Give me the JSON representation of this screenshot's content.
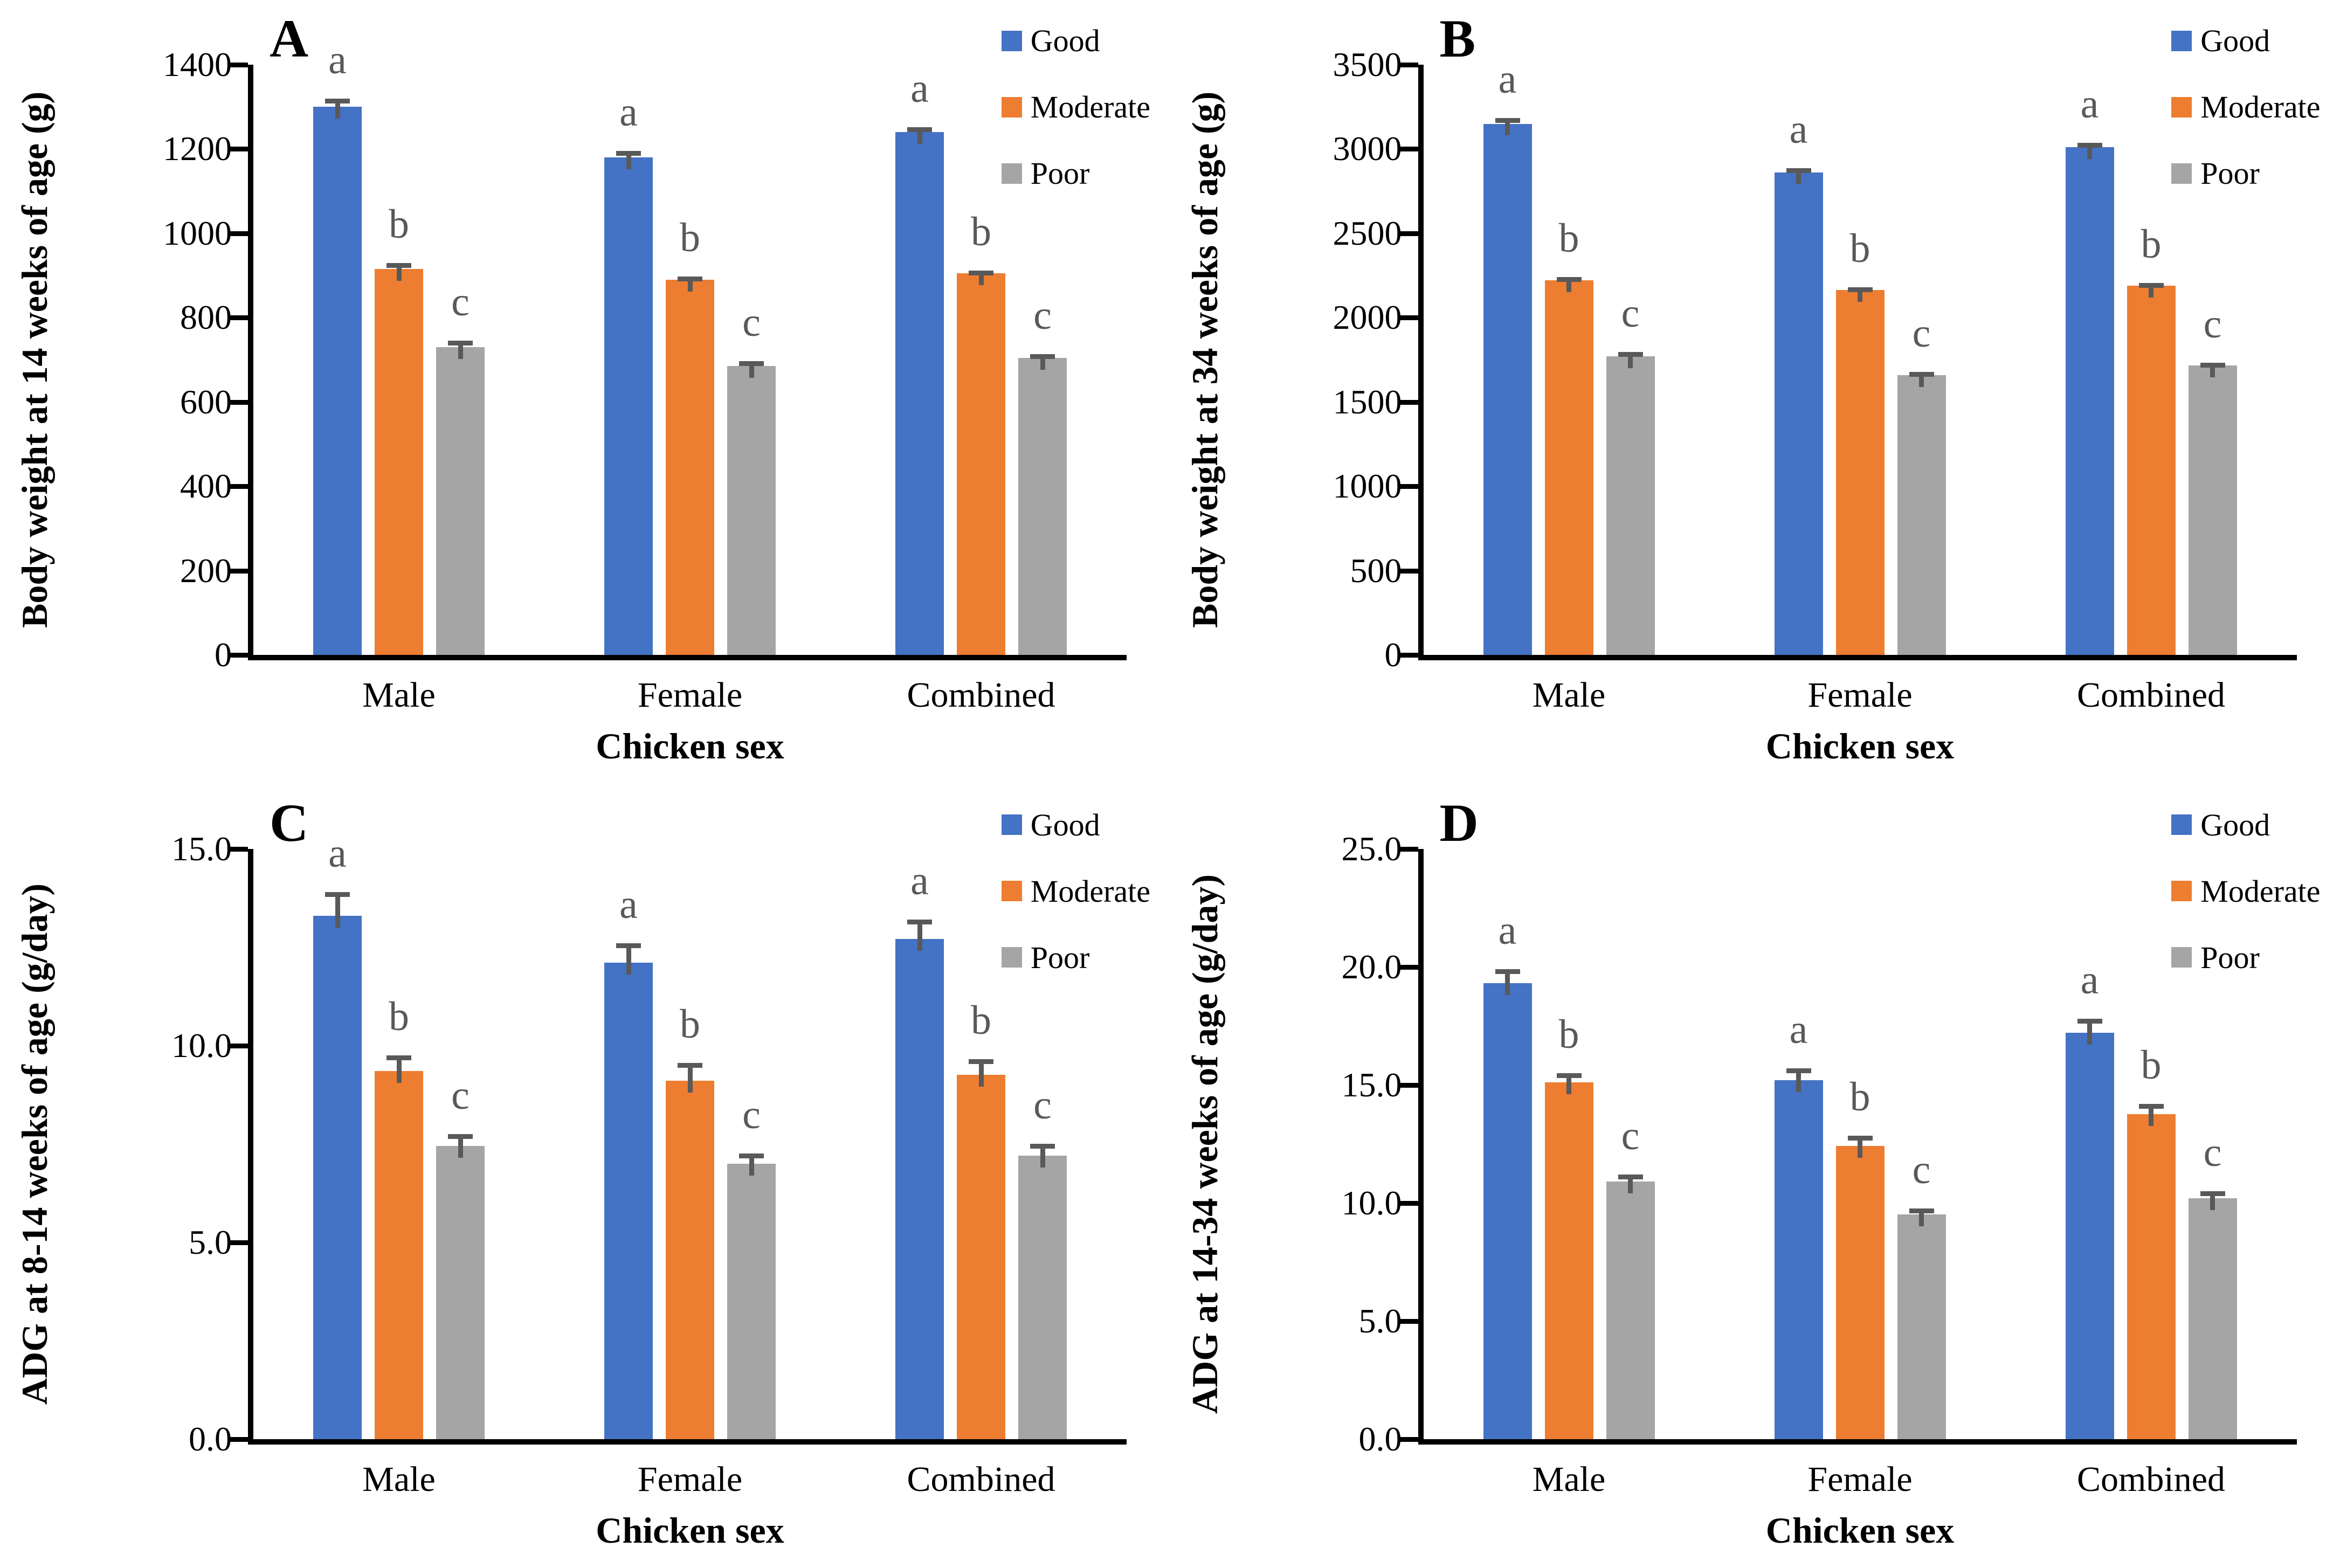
{
  "figure": {
    "background": "#FFFFFF",
    "axis_color": "#000000",
    "error_bar_color": "#595959",
    "sig_letter_color": "#595959",
    "series_colors": {
      "Good": "#4472C4",
      "Moderate": "#ED7D31",
      "Poor": "#A5A5A5"
    }
  },
  "chart_data": [
    {
      "panel": "A",
      "type": "bar",
      "ylabel": "Body weight at 14 weeks of age (g)",
      "xlabel": "Chicken sex",
      "ylim": [
        0,
        1400
      ],
      "ytick_values": [
        1400,
        1200,
        1000,
        800,
        600,
        400,
        200,
        0
      ],
      "ytick_labels": [
        "1400",
        "1200",
        "1000",
        "800",
        "600",
        "400",
        "200",
        "0"
      ],
      "categories": [
        "Male",
        "Female",
        "Combined"
      ],
      "legend_position": "top-right",
      "grid": false,
      "series": [
        {
          "name": "Good",
          "color": "#4472C4",
          "values": [
            1300,
            1180,
            1240
          ],
          "errors": [
            20,
            15,
            12
          ],
          "letters": [
            "a",
            "a",
            "a"
          ]
        },
        {
          "name": "Moderate",
          "color": "#ED7D31",
          "values": [
            915,
            890,
            905
          ],
          "errors": [
            15,
            8,
            6
          ],
          "letters": [
            "b",
            "b",
            "b"
          ]
        },
        {
          "name": "Poor",
          "color": "#A5A5A5",
          "values": [
            730,
            685,
            705
          ],
          "errors": [
            15,
            12,
            8
          ],
          "letters": [
            "c",
            "c",
            "c"
          ]
        }
      ]
    },
    {
      "panel": "B",
      "type": "bar",
      "ylabel": "Body weight at 34 weeks of age (g)",
      "xlabel": "Chicken sex",
      "ylim": [
        0,
        3500
      ],
      "ytick_values": [
        3500,
        3000,
        2500,
        2000,
        1500,
        1000,
        500,
        0
      ],
      "ytick_labels": [
        "3500",
        "3000",
        "2500",
        "2000",
        "1500",
        "1000",
        "500",
        "0"
      ],
      "categories": [
        "Male",
        "Female",
        "Combined"
      ],
      "legend_position": "top-right",
      "grid": false,
      "series": [
        {
          "name": "Good",
          "color": "#4472C4",
          "values": [
            3150,
            2860,
            3010
          ],
          "errors": [
            35,
            25,
            25
          ],
          "letters": [
            "a",
            "a",
            "a"
          ]
        },
        {
          "name": "Moderate",
          "color": "#ED7D31",
          "values": [
            2220,
            2165,
            2190
          ],
          "errors": [
            20,
            15,
            15
          ],
          "letters": [
            "b",
            "b",
            "b"
          ]
        },
        {
          "name": "Poor",
          "color": "#A5A5A5",
          "values": [
            1770,
            1660,
            1715
          ],
          "errors": [
            25,
            18,
            18
          ],
          "letters": [
            "c",
            "c",
            "c"
          ]
        }
      ]
    },
    {
      "panel": "C",
      "type": "bar",
      "ylabel": "ADG at 8-14 weeks of age (g/day)",
      "xlabel": "Chicken sex",
      "ylim": [
        0,
        15
      ],
      "ytick_values": [
        15,
        10,
        5,
        0
      ],
      "ytick_labels": [
        "15.0",
        "10.0",
        "5.0",
        "0.0"
      ],
      "categories": [
        "Male",
        "Female",
        "Combined"
      ],
      "legend_position": "top-right",
      "grid": false,
      "series": [
        {
          "name": "Good",
          "color": "#4472C4",
          "values": [
            13.3,
            12.1,
            12.7
          ],
          "errors": [
            0.6,
            0.5,
            0.5
          ],
          "letters": [
            "a",
            "a",
            "a"
          ]
        },
        {
          "name": "Moderate",
          "color": "#ED7D31",
          "values": [
            9.35,
            9.1,
            9.25
          ],
          "errors": [
            0.4,
            0.45,
            0.4
          ],
          "letters": [
            "b",
            "b",
            "b"
          ]
        },
        {
          "name": "Poor",
          "color": "#A5A5A5",
          "values": [
            7.45,
            7.0,
            7.2
          ],
          "errors": [
            0.3,
            0.25,
            0.3
          ],
          "letters": [
            "c",
            "c",
            "c"
          ]
        }
      ]
    },
    {
      "panel": "D",
      "type": "bar",
      "ylabel": "ADG at 14-34 weeks of age (g/day)",
      "xlabel": "Chicken sex",
      "ylim": [
        0,
        25
      ],
      "ytick_values": [
        25,
        20,
        15,
        10,
        5,
        0
      ],
      "ytick_labels": [
        "25.0",
        "20.0",
        "15.0",
        "10.0",
        "5.0",
        "0.0"
      ],
      "categories": [
        "Male",
        "Female",
        "Combined"
      ],
      "legend_position": "top-right",
      "grid": false,
      "series": [
        {
          "name": "Good",
          "color": "#4472C4",
          "values": [
            19.3,
            15.2,
            17.2
          ],
          "errors": [
            0.6,
            0.5,
            0.6
          ],
          "letters": [
            "a",
            "a",
            "a"
          ]
        },
        {
          "name": "Moderate",
          "color": "#ED7D31",
          "values": [
            15.1,
            12.4,
            13.75
          ],
          "errors": [
            0.4,
            0.45,
            0.45
          ],
          "letters": [
            "b",
            "b",
            "b"
          ]
        },
        {
          "name": "Poor",
          "color": "#A5A5A5",
          "values": [
            10.9,
            9.5,
            10.2
          ],
          "errors": [
            0.3,
            0.25,
            0.3
          ],
          "letters": [
            "c",
            "c",
            "c"
          ]
        }
      ]
    }
  ]
}
